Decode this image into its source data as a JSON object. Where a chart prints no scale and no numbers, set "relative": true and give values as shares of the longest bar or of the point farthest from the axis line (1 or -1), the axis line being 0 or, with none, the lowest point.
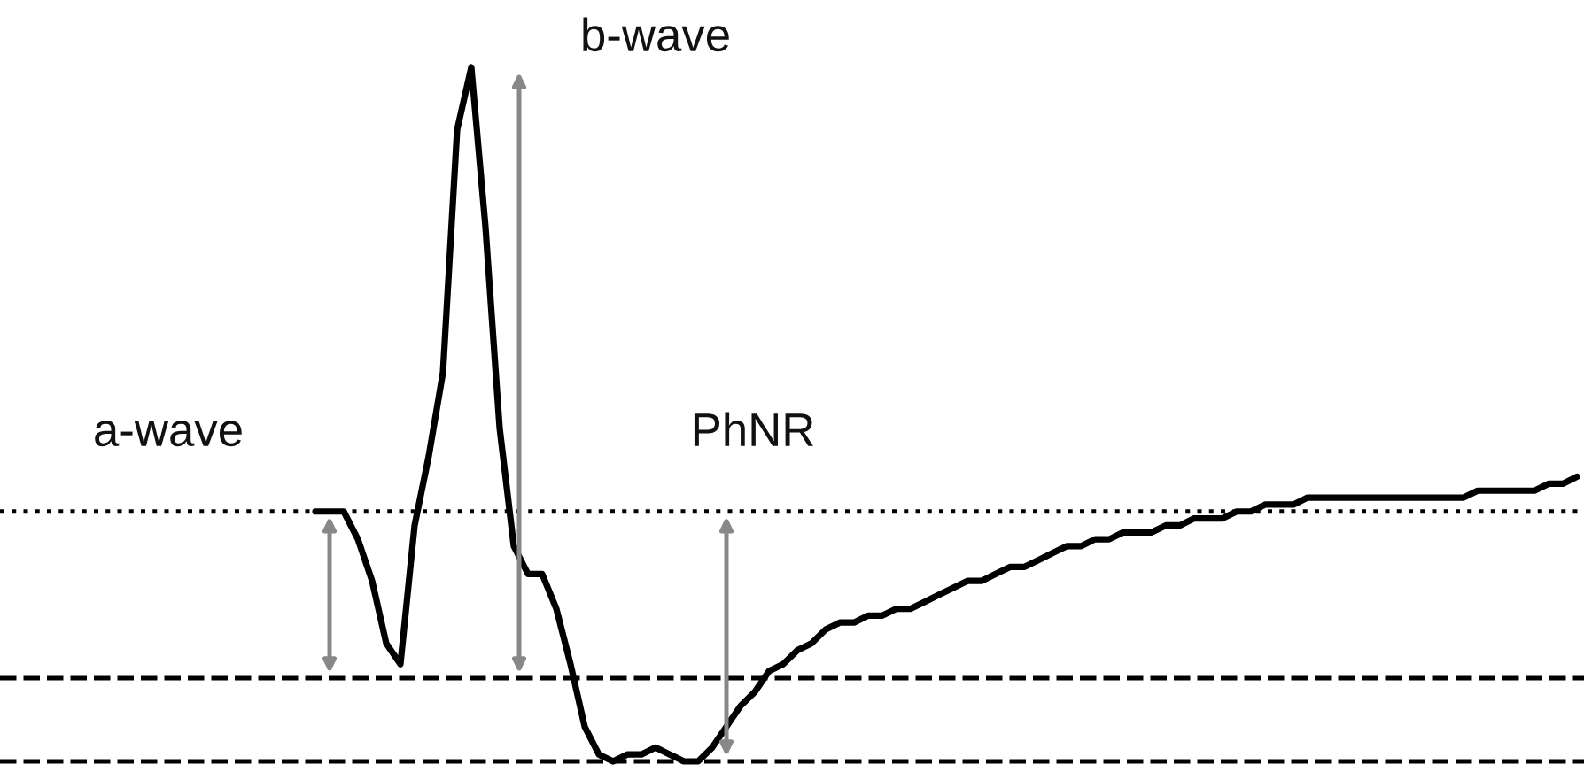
{
  "chart_data": {
    "type": "line",
    "relative": true,
    "line_style": "solid",
    "marker": "none",
    "legend": false,
    "categories": [
      null,
      null,
      null,
      null,
      null,
      null,
      null,
      null,
      null,
      null,
      null,
      null,
      null,
      null,
      null,
      null,
      null,
      null,
      null,
      null,
      null,
      null,
      null,
      null,
      null,
      null,
      null,
      null,
      null,
      null,
      null,
      null,
      null,
      null,
      null,
      null,
      null,
      null,
      null,
      null,
      null,
      null,
      null,
      null,
      null,
      null,
      null,
      null,
      null,
      null,
      null,
      null,
      null,
      null,
      null,
      null,
      null,
      null,
      null,
      null,
      null,
      null,
      null,
      null,
      null,
      null,
      null,
      null,
      null,
      null,
      null,
      null,
      null,
      null,
      null,
      null,
      null,
      null,
      null,
      null,
      null,
      null,
      null,
      null,
      null,
      null,
      null,
      null,
      null,
      null
    ],
    "series": [
      {
        "color": "#000000",
        "values": [
          0.36,
          0.36,
          0.36,
          0.32,
          0.26,
          0.17,
          0.14,
          0.34,
          0.44,
          0.56,
          0.91,
          1.0,
          0.77,
          0.48,
          0.31,
          0.27,
          0.27,
          0.22,
          0.14,
          0.05,
          0.01,
          0,
          0.01,
          0.01,
          0.02,
          0.01,
          0,
          0,
          0.02,
          0.05,
          0.08,
          0.1,
          0.13,
          0.14,
          0.16,
          0.17,
          0.19,
          0.2,
          0.2,
          0.21,
          0.21,
          0.22,
          0.22,
          0.23,
          0.24,
          0.25,
          0.26,
          0.26,
          0.27,
          0.28,
          0.28,
          0.29,
          0.3,
          0.31,
          0.31,
          0.32,
          0.32,
          0.33,
          0.33,
          0.33,
          0.34,
          0.34,
          0.35,
          0.35,
          0.35,
          0.36,
          0.36,
          0.37,
          0.37,
          0.37,
          0.38,
          0.38,
          0.38,
          0.38,
          0.38,
          0.38,
          0.38,
          0.38,
          0.38,
          0.38,
          0.38,
          0.38,
          0.39,
          0.39,
          0.39,
          0.39,
          0.39,
          0.4,
          0.4,
          0.41
        ]
      }
    ],
    "ref_lines": [
      {
        "axis": "y",
        "value": 0.36,
        "line_style": "dotted",
        "color": "#000000"
      },
      {
        "axis": "y",
        "value": 0.12,
        "line_style": "dashed",
        "color": "#000000"
      },
      {
        "axis": "y",
        "value": 0,
        "line_style": "dashed",
        "color": "#000000"
      }
    ],
    "annotations": [
      "a-wave",
      "b-wave",
      "PhNR"
    ]
  }
}
